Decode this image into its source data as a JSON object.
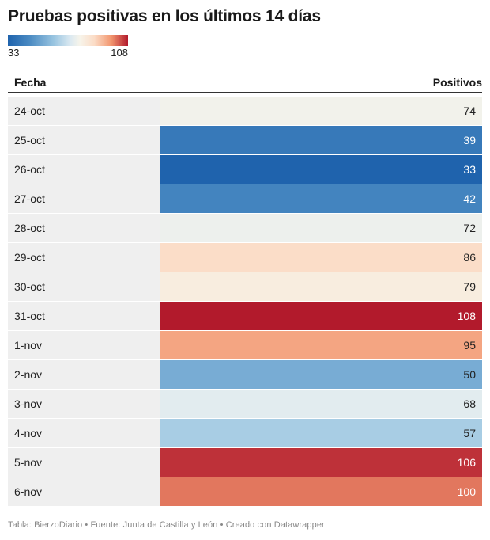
{
  "title": "Pruebas positivas en los últimos 14 días",
  "legend": {
    "min_label": "33",
    "max_label": "108"
  },
  "columns": {
    "date": "Fecha",
    "value": "Positivos"
  },
  "footer": "Tabla: BierzoDiario • Fuente: Junta de Castilla y León • Creado con Datawrapper",
  "chart_data": {
    "type": "table",
    "title": "Pruebas positivas en los últimos 14 días",
    "columns": [
      "Fecha",
      "Positivos"
    ],
    "categories": [
      "24-oct",
      "25-oct",
      "26-oct",
      "27-oct",
      "28-oct",
      "29-oct",
      "30-oct",
      "31-oct",
      "1-nov",
      "2-nov",
      "3-nov",
      "4-nov",
      "5-nov",
      "6-nov"
    ],
    "values": [
      74,
      39,
      33,
      42,
      72,
      86,
      79,
      108,
      95,
      50,
      68,
      57,
      106,
      100
    ],
    "color_scale": {
      "min": 33,
      "max": 108,
      "colors": [
        "#1f63ad",
        "#4a8ac2",
        "#98c4e0",
        "#dbe9f1",
        "#f7f4ea",
        "#fbdcc6",
        "#f2966f",
        "#b21a2c"
      ]
    }
  }
}
